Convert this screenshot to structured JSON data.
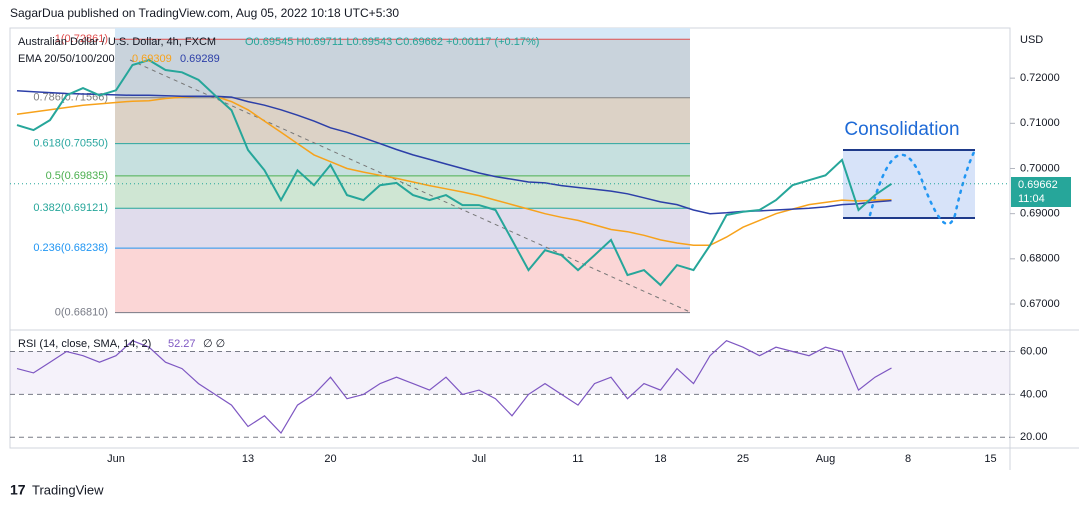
{
  "header": {
    "published": "SagarDua published on TradingView.com, Aug 05, 2022 10:18 UTC+5:30",
    "footer": "TradingView"
  },
  "chart_data": [
    {
      "type": "line",
      "title": "Australian Dollar / U.S. Dollar, 4h, FXCM",
      "subtitle": "O0.69545 H0.69711 L0.69543 C0.69662 +0.00117 (+0.17%)",
      "y_axis_label": "USD",
      "categories": [
        null,
        null,
        null,
        null,
        null,
        null,
        "Jun",
        null,
        null,
        null,
        null,
        null,
        null,
        null,
        "13",
        null,
        null,
        null,
        null,
        "20",
        null,
        null,
        null,
        null,
        null,
        null,
        null,
        null,
        "Jul",
        null,
        null,
        null,
        null,
        null,
        "11",
        null,
        null,
        null,
        null,
        "18",
        null,
        null,
        null,
        null,
        "25",
        null,
        null,
        null,
        null,
        "Aug",
        null,
        null,
        null,
        null,
        "8",
        null,
        null,
        null,
        null,
        "15",
        null
      ],
      "series": [
        {
          "name": "Australian Dollar / U.S. Dollar, 4h, FXCM",
          "color": "#26a69a",
          "values": [
            0.7096,
            0.7085,
            0.7107,
            0.7162,
            0.7178,
            0.7162,
            0.7173,
            0.7229,
            0.724,
            0.7218,
            0.7213,
            0.7196,
            0.7162,
            0.7129,
            0.7041,
            0.6996,
            0.693,
            0.6996,
            0.6963,
            0.7008,
            0.6941,
            0.693,
            0.6963,
            0.6968,
            0.6941,
            0.693,
            0.6941,
            0.6919,
            0.6919,
            0.6908,
            0.6842,
            0.6775,
            0.6819,
            0.6808,
            0.6775,
            0.6808,
            0.6842,
            0.6764,
            0.6775,
            0.6742,
            0.6786,
            0.6775,
            0.683,
            0.6897,
            0.6904,
            0.6908,
            0.693,
            0.6963,
            0.6974,
            0.6985,
            0.7019,
            0.6908,
            0.6941,
            0.69662,
            null,
            null,
            null,
            null,
            null,
            null,
            null
          ],
          "last_value": 0.69662,
          "last_time": "11:04"
        }
      ],
      "indicator_label": "EMA 20/50/100/200",
      "overlays": [
        {
          "color": "#f7a21b",
          "last_value": 0.69309,
          "values": [
            0.712,
            0.7125,
            0.713,
            0.7135,
            0.714,
            0.7143,
            0.7146,
            0.7149,
            0.715,
            0.7155,
            0.7158,
            0.716,
            0.716,
            0.7148,
            0.713,
            0.7105,
            0.708,
            0.7055,
            0.703,
            0.7015,
            0.7,
            0.6992,
            0.6985,
            0.6978,
            0.697,
            0.6962,
            0.6955,
            0.6948,
            0.694,
            0.693,
            0.692,
            0.691,
            0.69,
            0.6892,
            0.6885,
            0.6875,
            0.6865,
            0.686,
            0.6852,
            0.6842,
            0.6835,
            0.683,
            0.683,
            0.6848,
            0.687,
            0.6885,
            0.69,
            0.691,
            0.692,
            0.6925,
            0.693,
            0.6928,
            0.693,
            0.69309,
            null,
            null,
            null,
            null,
            null,
            null,
            null
          ]
        },
        {
          "color": "#2c3fa8",
          "last_value": 0.69289,
          "values": [
            0.7172,
            0.717,
            0.7168,
            0.7166,
            0.7165,
            0.7164,
            0.7163,
            0.7162,
            0.7162,
            0.7161,
            0.716,
            0.716,
            0.716,
            0.7158,
            0.7148,
            0.714,
            0.713,
            0.7118,
            0.7105,
            0.709,
            0.708,
            0.7068,
            0.7055,
            0.7042,
            0.703,
            0.702,
            0.701,
            0.7,
            0.699,
            0.6982,
            0.6976,
            0.697,
            0.6968,
            0.6962,
            0.6958,
            0.6954,
            0.695,
            0.6944,
            0.6935,
            0.6926,
            0.692,
            0.6908,
            0.69,
            0.6902,
            0.6905,
            0.6906,
            0.6908,
            0.691,
            0.6912,
            0.6915,
            0.692,
            0.6922,
            0.6926,
            0.69289,
            null,
            null,
            null,
            null,
            null,
            null,
            null
          ]
        }
      ],
      "fib_levels": [
        {
          "value": 0.72861,
          "label": "1(0.72861)"
        },
        {
          "value": 0.71566,
          "label": "0.786(0.71566)"
        },
        {
          "value": 0.7055,
          "label": "0.618(0.70550)"
        },
        {
          "value": 0.69835,
          "label": "0.5(0.69835)"
        },
        {
          "value": 0.69121,
          "label": "0.382(0.69121)"
        },
        {
          "value": 0.68238,
          "label": "0.236(0.68238)"
        },
        {
          "value": 0.6681,
          "label": "0(0.66810)"
        }
      ],
      "fib_colors": [
        "#c9d3dc",
        "#dcd2c6",
        "#c6e0df",
        "#cfe6d3",
        "#e0dcec",
        "#fbd6d6"
      ],
      "fib_line_colors": [
        "#e05050",
        "#808080",
        "#2aa7a0",
        "#4caf50",
        "#26a69a",
        "#2196f3",
        "#787b86"
      ],
      "annotation": "Consolidation",
      "ylim": [
        0.6669,
        0.7311
      ],
      "yticks": [
        {
          "value": 0.72,
          "label": "0.72000"
        },
        {
          "value": 0.71,
          "label": "0.71000"
        },
        {
          "value": 0.7,
          "label": "0.70000"
        },
        {
          "value": 0.69,
          "label": "0.69000"
        },
        {
          "value": 0.68,
          "label": "0.68000"
        },
        {
          "value": 0.67,
          "label": "0.67000"
        }
      ]
    },
    {
      "type": "line",
      "title": "RSI (14, close, SMA, 14, 2)",
      "subtitle": "∅ ∅",
      "series": [
        {
          "name": "RSI",
          "color": "#7e57c2",
          "last_value": 52.27,
          "values": [
            52,
            50,
            55,
            60,
            58,
            55,
            58,
            65,
            62,
            55,
            52,
            45,
            40,
            35,
            25,
            30,
            22,
            35,
            40,
            48,
            38,
            40,
            45,
            48,
            45,
            42,
            48,
            40,
            42,
            38,
            30,
            40,
            45,
            40,
            35,
            45,
            48,
            38,
            45,
            42,
            52,
            45,
            58,
            65,
            62,
            58,
            62,
            60,
            58,
            62,
            60,
            42,
            48,
            52.27,
            null,
            null,
            null,
            null,
            null,
            null,
            null
          ]
        }
      ],
      "ylim": [
        15,
        70
      ],
      "yticks": [
        {
          "value": 60,
          "label": "60.00"
        },
        {
          "value": 40,
          "label": "40.00"
        },
        {
          "value": 20,
          "label": "20.00"
        }
      ]
    }
  ]
}
